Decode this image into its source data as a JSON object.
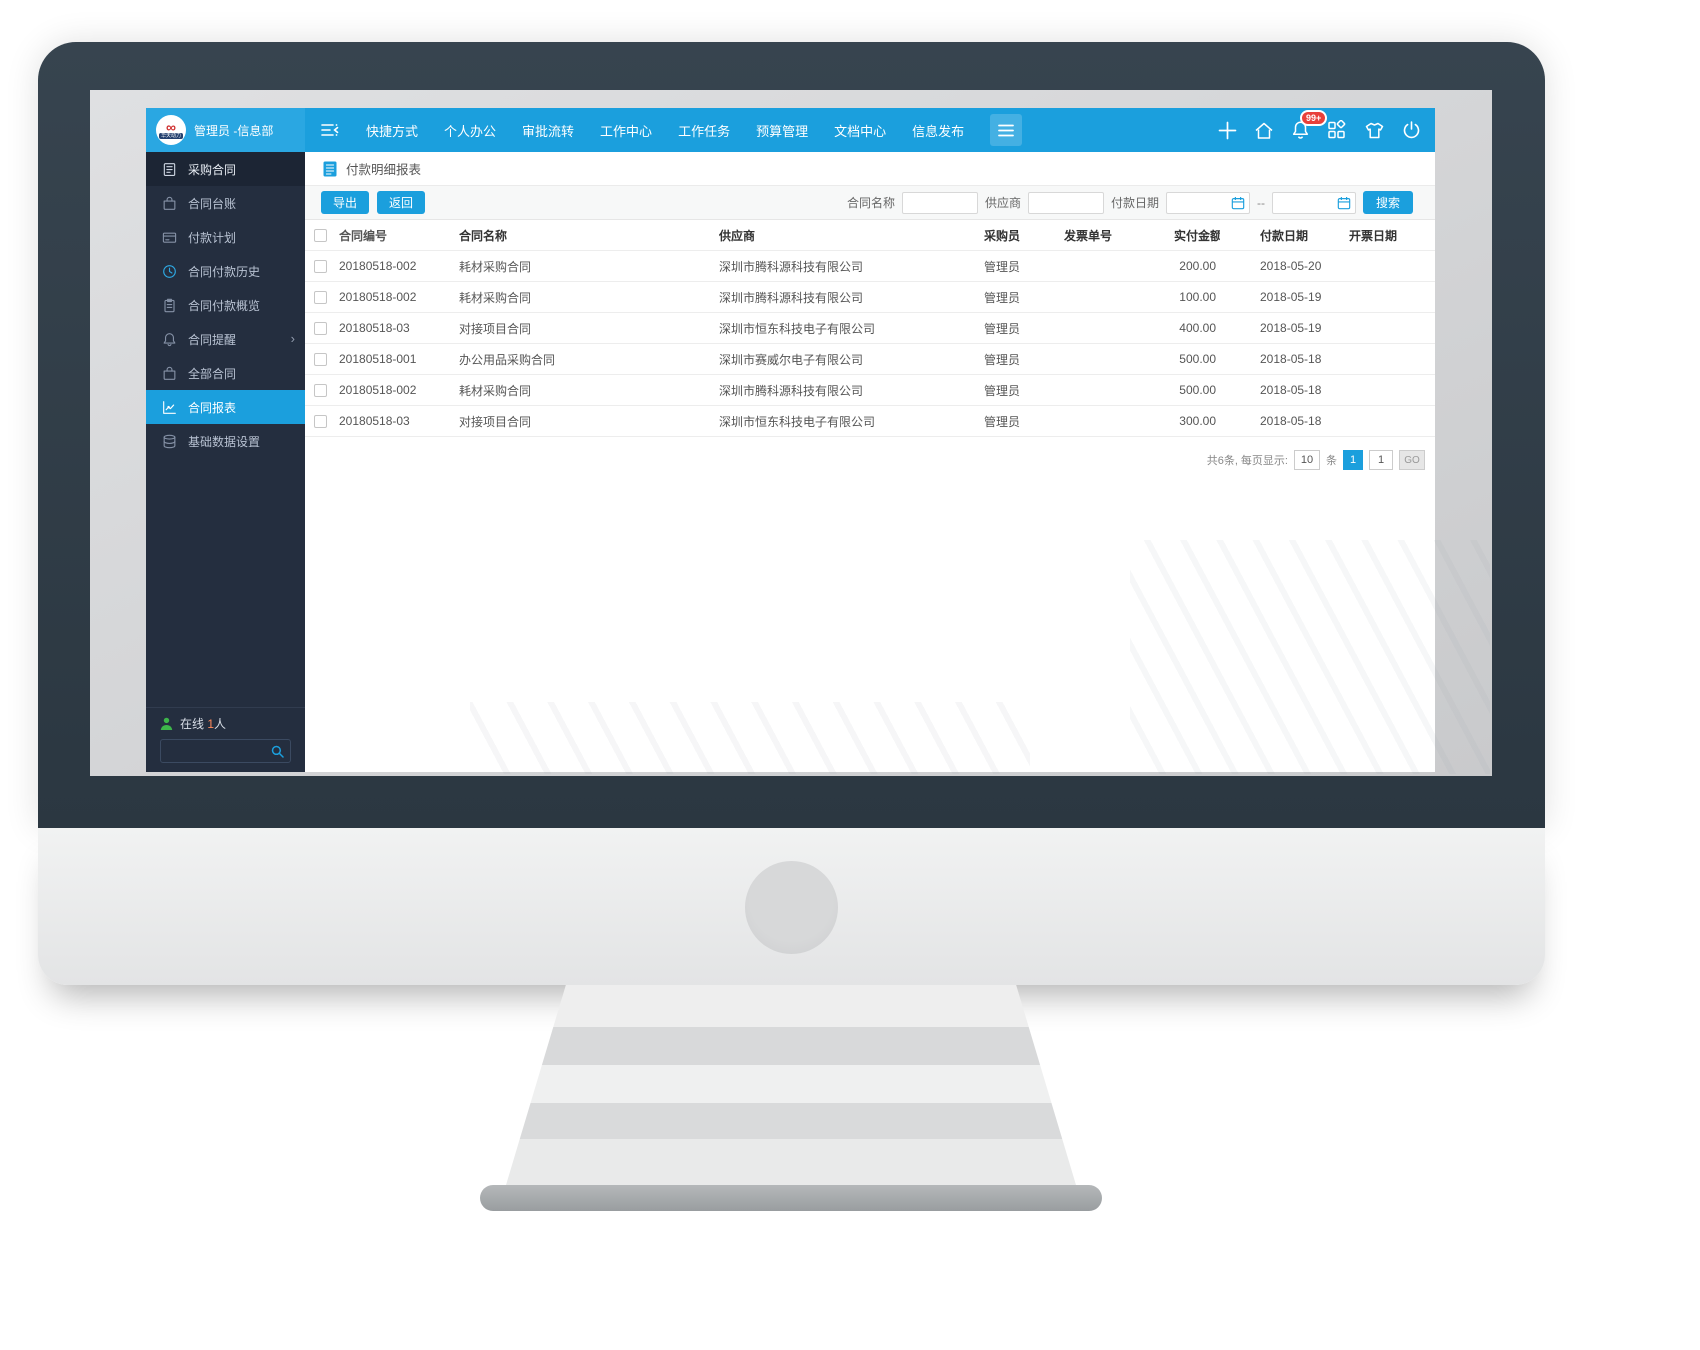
{
  "colors": {
    "accent": "#1b9fdd",
    "topbar_left": "#2aa7e2",
    "sidebar_bg": "#242e3f",
    "sidebar_header_bg": "#1c2534",
    "badge_red": "#e8403a",
    "online_green": "#3db54a"
  },
  "topbar": {
    "logo_text": "华天动力",
    "user": "管理员 -信息部",
    "badge": "99+",
    "nav": [
      {
        "id": "shortcuts",
        "label": "快捷方式"
      },
      {
        "id": "personal-office",
        "label": "个人办公"
      },
      {
        "id": "approval-flow",
        "label": "审批流转"
      },
      {
        "id": "work-center",
        "label": "工作中心"
      },
      {
        "id": "work-tasks",
        "label": "工作任务"
      },
      {
        "id": "budget-management",
        "label": "预算管理"
      },
      {
        "id": "document-center",
        "label": "文档中心"
      },
      {
        "id": "info-publish",
        "label": "信息发布"
      }
    ],
    "icons": [
      "menu-collapse-icon",
      "menu-more-icon",
      "plus-icon",
      "home-icon",
      "bell-icon",
      "apps-grid-icon",
      "theme-shirt-icon",
      "power-icon"
    ]
  },
  "sidebar": {
    "items": [
      {
        "id": "purchase-contract",
        "label": "采购合同",
        "icon": "contract-doc-icon",
        "header": true
      },
      {
        "id": "contract-ledger",
        "label": "合同台账",
        "icon": "bag-icon"
      },
      {
        "id": "payment-plan",
        "label": "付款计划",
        "icon": "payment-card-icon"
      },
      {
        "id": "payment-history",
        "label": "合同付款历史",
        "icon": "clock-icon",
        "icon_blue": true
      },
      {
        "id": "payment-overview",
        "label": "合同付款概览",
        "icon": "clipboard-icon"
      },
      {
        "id": "contract-reminder",
        "label": "合同提醒",
        "icon": "bell-small-icon",
        "chevron": "›"
      },
      {
        "id": "all-contracts",
        "label": "全部合同",
        "icon": "bag-icon"
      },
      {
        "id": "contract-report",
        "label": "合同报表",
        "icon": "chart-icon",
        "active": true
      },
      {
        "id": "base-data-settings",
        "label": "基础数据设置",
        "icon": "database-icon"
      }
    ],
    "online": {
      "prefix": "在线 ",
      "count": "1",
      "suffix": "人"
    },
    "search_value": ""
  },
  "breadcrumb": {
    "title": "付款明细报表",
    "icon": "report-doc-icon"
  },
  "toolbar": {
    "export_label": "导出",
    "back_label": "返回",
    "filters": {
      "contract_name": "合同名称",
      "supplier": "供应商",
      "pay_date": "付款日期"
    },
    "range_separator": "--",
    "search_label": "搜索"
  },
  "table": {
    "headers": [
      "合同编号",
      "合同名称",
      "供应商",
      "采购员",
      "发票单号",
      "实付金额",
      "付款日期",
      "开票日期"
    ],
    "rows": [
      [
        "20180518-002",
        "耗材采购合同",
        "深圳市腾科源科技有限公司",
        "管理员",
        "",
        "200.00",
        "2018-05-20",
        ""
      ],
      [
        "20180518-002",
        "耗材采购合同",
        "深圳市腾科源科技有限公司",
        "管理员",
        "",
        "100.00",
        "2018-05-19",
        ""
      ],
      [
        "20180518-03",
        "对接项目合同",
        "深圳市恒东科技电子有限公司",
        "管理员",
        "",
        "400.00",
        "2018-05-19",
        ""
      ],
      [
        "20180518-001",
        "办公用品采购合同",
        "深圳市赛威尔电子有限公司",
        "管理员",
        "",
        "500.00",
        "2018-05-18",
        ""
      ],
      [
        "20180518-002",
        "耗材采购合同",
        "深圳市腾科源科技有限公司",
        "管理员",
        "",
        "500.00",
        "2018-05-18",
        ""
      ],
      [
        "20180518-03",
        "对接项目合同",
        "深圳市恒东科技电子有限公司",
        "管理员",
        "",
        "300.00",
        "2018-05-18",
        ""
      ]
    ]
  },
  "pagination": {
    "summary": "共6条, 每页显示:",
    "page_size": "10",
    "unit": "条",
    "current_page": "1",
    "page_input": "1",
    "go_label": "GO"
  }
}
